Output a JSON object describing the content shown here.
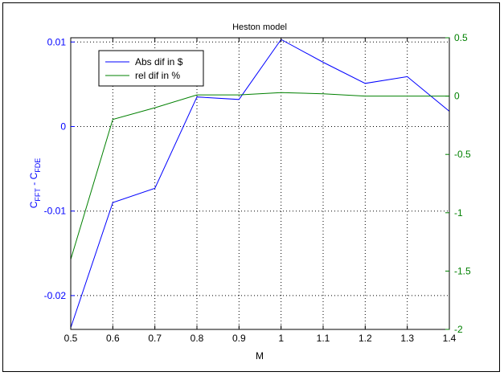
{
  "chart_data": {
    "type": "line",
    "title": "Heston model",
    "xlabel": "M",
    "ylabel_left": {
      "main": "C",
      "sub1": "FFT",
      "dash": " - C",
      "sub2": "FDE"
    },
    "ylabel_right": "",
    "xlim": [
      0.5,
      1.4
    ],
    "ylim_left": [
      -0.024,
      0.0105
    ],
    "ylim_right": [
      -2,
      0.5
    ],
    "xticks": [
      0.5,
      0.6,
      0.7,
      0.8,
      0.9,
      1,
      1.1,
      1.2,
      1.3,
      1.4
    ],
    "xtick_labels": [
      "0.5",
      "0.6",
      "0.7",
      "0.8",
      "0.9",
      "1",
      "1.1",
      "1.2",
      "1.3",
      "1.4"
    ],
    "yticks_left": [
      -0.02,
      -0.01,
      0,
      0.01
    ],
    "ytick_labels_left": [
      "-0.02",
      "-0.01",
      "0",
      "0.01"
    ],
    "yticks_right": [
      -2,
      -1.5,
      -1,
      -0.5,
      0,
      0.5
    ],
    "ytick_labels_right": [
      "-2",
      "-1.5",
      "-1",
      "-0.5",
      "0",
      "0.5"
    ],
    "grid": true,
    "legend_position": "top-left",
    "colors": {
      "left_series": "#0000ff",
      "right_series": "#008000",
      "axes": "#000000",
      "grid": "#000000"
    },
    "series": [
      {
        "name": "Abs dif in $",
        "axis": "left",
        "color": "#0000ff",
        "x": [
          0.5,
          0.6,
          0.7,
          0.8,
          0.9,
          1.0,
          1.1,
          1.2,
          1.3,
          1.4
        ],
        "y": [
          -0.0238,
          -0.009,
          -0.0073,
          0.0035,
          0.0032,
          0.0103,
          0.0076,
          0.0051,
          0.0059,
          0.0018
        ]
      },
      {
        "name": "rel dif in %",
        "axis": "right",
        "color": "#008000",
        "x": [
          0.5,
          0.6,
          0.7,
          0.8,
          0.9,
          1.0,
          1.1,
          1.2,
          1.3,
          1.4
        ],
        "y": [
          -1.4,
          -0.2,
          -0.1,
          0.01,
          0.01,
          0.03,
          0.02,
          0.0,
          0.0,
          0.0
        ]
      }
    ]
  }
}
